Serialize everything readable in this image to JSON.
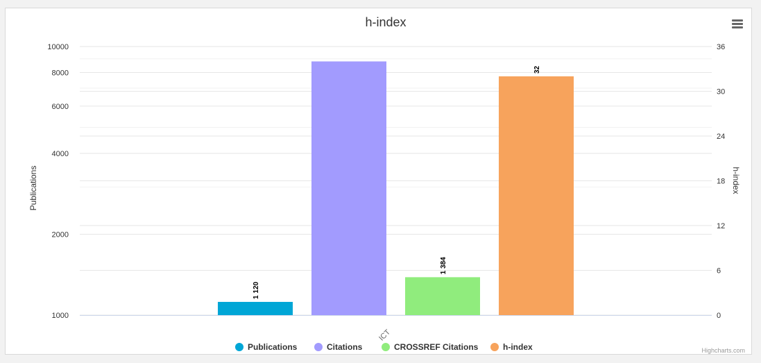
{
  "chart_data": {
    "type": "bar",
    "title": "h-index",
    "categories": [
      "ICT"
    ],
    "y_left": {
      "label": "Publications",
      "scale": "log",
      "ticks": [
        1000,
        2000,
        4000,
        6000,
        8000,
        10000
      ],
      "tick_labels": [
        "1000",
        "2000",
        "4000",
        "6000",
        "8000",
        "10000"
      ],
      "range": [
        1000,
        10000
      ]
    },
    "y_right": {
      "label": "h-index",
      "scale": "linear",
      "ticks": [
        0,
        6,
        12,
        18,
        24,
        30,
        36
      ],
      "tick_labels": [
        "0",
        "6",
        "12",
        "18",
        "24",
        "30",
        "36"
      ],
      "range": [
        0,
        36
      ]
    },
    "series": [
      {
        "name": "Publications",
        "axis": "left",
        "values": [
          1120
        ],
        "data_label": "1 120",
        "color": "#00a6d6"
      },
      {
        "name": "Citations",
        "axis": "left",
        "values": [
          8800
        ],
        "data_label": "",
        "color": "#a29bfe"
      },
      {
        "name": "CROSSREF Citations",
        "axis": "left",
        "values": [
          1384
        ],
        "data_label": "1 384",
        "color": "#90ec7d"
      },
      {
        "name": "h-index",
        "axis": "right",
        "values": [
          32
        ],
        "data_label": "32",
        "color": "#f7a35c"
      }
    ],
    "legend_position": "bottom-center",
    "grid": true
  },
  "credits": "Highcharts.com",
  "menu_icon": "hamburger-menu-icon"
}
